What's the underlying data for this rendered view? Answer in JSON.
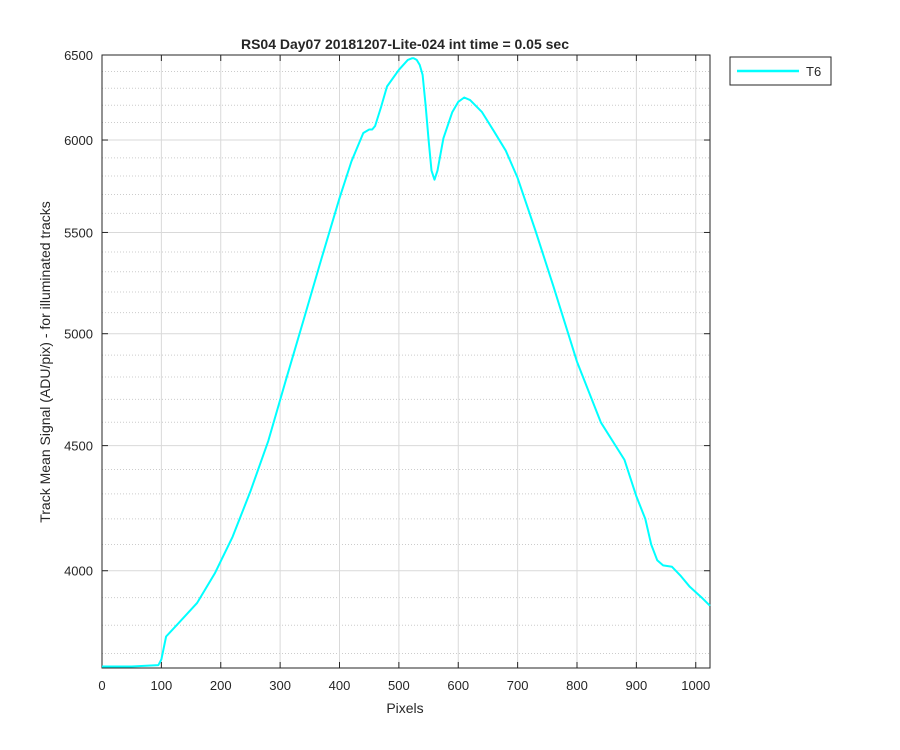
{
  "chart_data": {
    "type": "line",
    "title": "RS04 Day07 20181207-Lite-024 int time = 0.05 sec",
    "xlabel": "Pixels",
    "ylabel": "Track Mean Signal (ADU/pix) - for illuminated tracks",
    "xlim": [
      0,
      1024
    ],
    "ylim": [
      3650,
      6500
    ],
    "yscale": "log",
    "grid": true,
    "minor_grid": true,
    "legend_position": "outside-top-right",
    "x_ticks": [
      0,
      100,
      200,
      300,
      400,
      500,
      600,
      700,
      800,
      900,
      1000
    ],
    "y_ticks": [
      4000,
      4500,
      5000,
      5500,
      6000,
      6500
    ],
    "series": [
      {
        "name": "T6",
        "color": "#00ffff",
        "x": [
          0,
          50,
          95,
          100,
          108,
          130,
          160,
          190,
          220,
          250,
          280,
          310,
          340,
          370,
          400,
          420,
          440,
          450,
          455,
          460,
          470,
          480,
          500,
          515,
          522,
          525,
          530,
          535,
          540,
          545,
          550,
          555,
          560,
          565,
          575,
          590,
          600,
          610,
          620,
          640,
          660,
          680,
          700,
          730,
          760,
          800,
          840,
          880,
          900,
          915,
          925,
          935,
          945,
          960,
          975,
          990,
          1010,
          1024
        ],
        "y": [
          3655,
          3655,
          3660,
          3680,
          3760,
          3810,
          3880,
          3990,
          4130,
          4310,
          4520,
          4790,
          5070,
          5370,
          5680,
          5880,
          6040,
          6060,
          6060,
          6080,
          6190,
          6310,
          6410,
          6470,
          6480,
          6480,
          6470,
          6440,
          6380,
          6200,
          6000,
          5830,
          5780,
          5830,
          6010,
          6160,
          6220,
          6245,
          6230,
          6160,
          6050,
          5940,
          5790,
          5510,
          5230,
          4870,
          4600,
          4440,
          4290,
          4200,
          4100,
          4040,
          4020,
          4015,
          3980,
          3940,
          3900,
          3870
        ]
      }
    ]
  }
}
